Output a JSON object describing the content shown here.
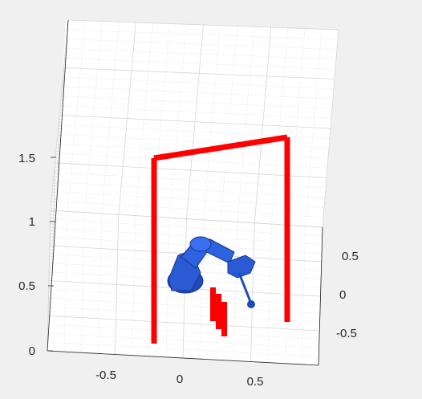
{
  "figure": {
    "background": "#f0f0f0",
    "axes_background": "#ffffff"
  },
  "chart_data": {
    "type": "3d-scene",
    "title": "",
    "xlabel": "",
    "ylabel": "",
    "zlabel": "",
    "grid": "on (major + minor)",
    "axes": {
      "x": {
        "ticks": [
          -0.5,
          0,
          0.5
        ],
        "tick_labels": [
          "-0.5",
          "0",
          "0.5"
        ],
        "lim": [
          -0.9,
          0.9
        ]
      },
      "y": {
        "ticks": [
          0.5,
          0,
          -0.5
        ],
        "tick_labels": [
          "0.5",
          "0",
          "-0.5"
        ],
        "lim": [
          -0.9,
          0.9
        ]
      },
      "z": {
        "ticks": [
          0,
          0.5,
          1,
          1.5
        ],
        "tick_labels": [
          "0",
          "0.5",
          "1",
          "1.5"
        ],
        "lim": [
          0,
          2
        ]
      }
    },
    "objects": [
      {
        "name": "gate-frame",
        "color": "#ff0000",
        "shape": "inverted-U frame of three bars"
      },
      {
        "name": "target-markers",
        "color": "#ff0000",
        "shape": "short vertical bars"
      },
      {
        "name": "robot-arm",
        "color": "#2f5fd0",
        "shape": "articulated manipulator with end-effector"
      }
    ]
  }
}
